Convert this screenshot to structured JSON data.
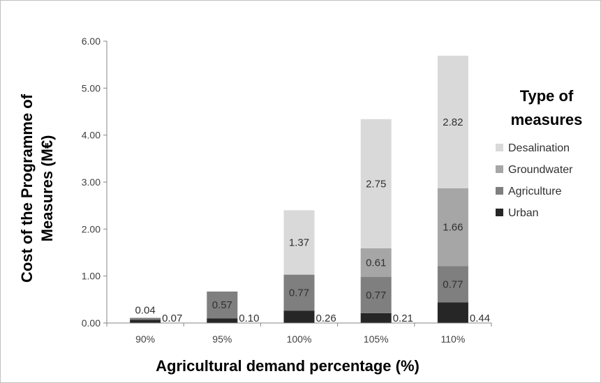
{
  "chart_data": {
    "type": "bar",
    "stacked": true,
    "categories": [
      "90%",
      "95%",
      "100%",
      "105%",
      "110%"
    ],
    "series": [
      {
        "name": "Urban",
        "values": [
          0.07,
          0.1,
          0.26,
          0.21,
          0.44
        ],
        "color": "#262626"
      },
      {
        "name": "Agriculture",
        "values": [
          0.04,
          0.57,
          0.77,
          0.77,
          0.77
        ],
        "color": "#7f7f7f"
      },
      {
        "name": "Groundwater",
        "values": [
          0,
          0,
          0,
          0.61,
          1.66
        ],
        "color": "#a6a6a6"
      },
      {
        "name": "Desalination",
        "values": [
          0,
          0,
          1.37,
          2.75,
          2.82
        ],
        "color": "#d9d9d9"
      }
    ],
    "data_labels": {
      "Urban": [
        "0.07",
        "0.10",
        "0.26",
        "0.21",
        "0.44"
      ],
      "Agriculture": [
        "0.04",
        "0.57",
        "0.77",
        "0.77",
        "0.77"
      ],
      "Groundwater": [
        "",
        "",
        "",
        "0.61",
        "1.66"
      ],
      "Desalination": [
        "",
        "",
        "1.37",
        "2.75",
        "2.82"
      ]
    },
    "ylim": [
      0,
      6
    ],
    "yticks": [
      "0.00",
      "1.00",
      "2.00",
      "3.00",
      "4.00",
      "5.00",
      "6.00"
    ],
    "xlabel": "Agricultural demand percentage (%)",
    "ylabel_line1": "Cost of the Programme of",
    "ylabel_line2": "Measures (M€)",
    "legend": {
      "title_line1": "Type of",
      "title_line2": "measures",
      "position": "right",
      "items": [
        "Desalination",
        "Groundwater",
        "Agriculture",
        "Urban"
      ]
    },
    "grid": false
  }
}
